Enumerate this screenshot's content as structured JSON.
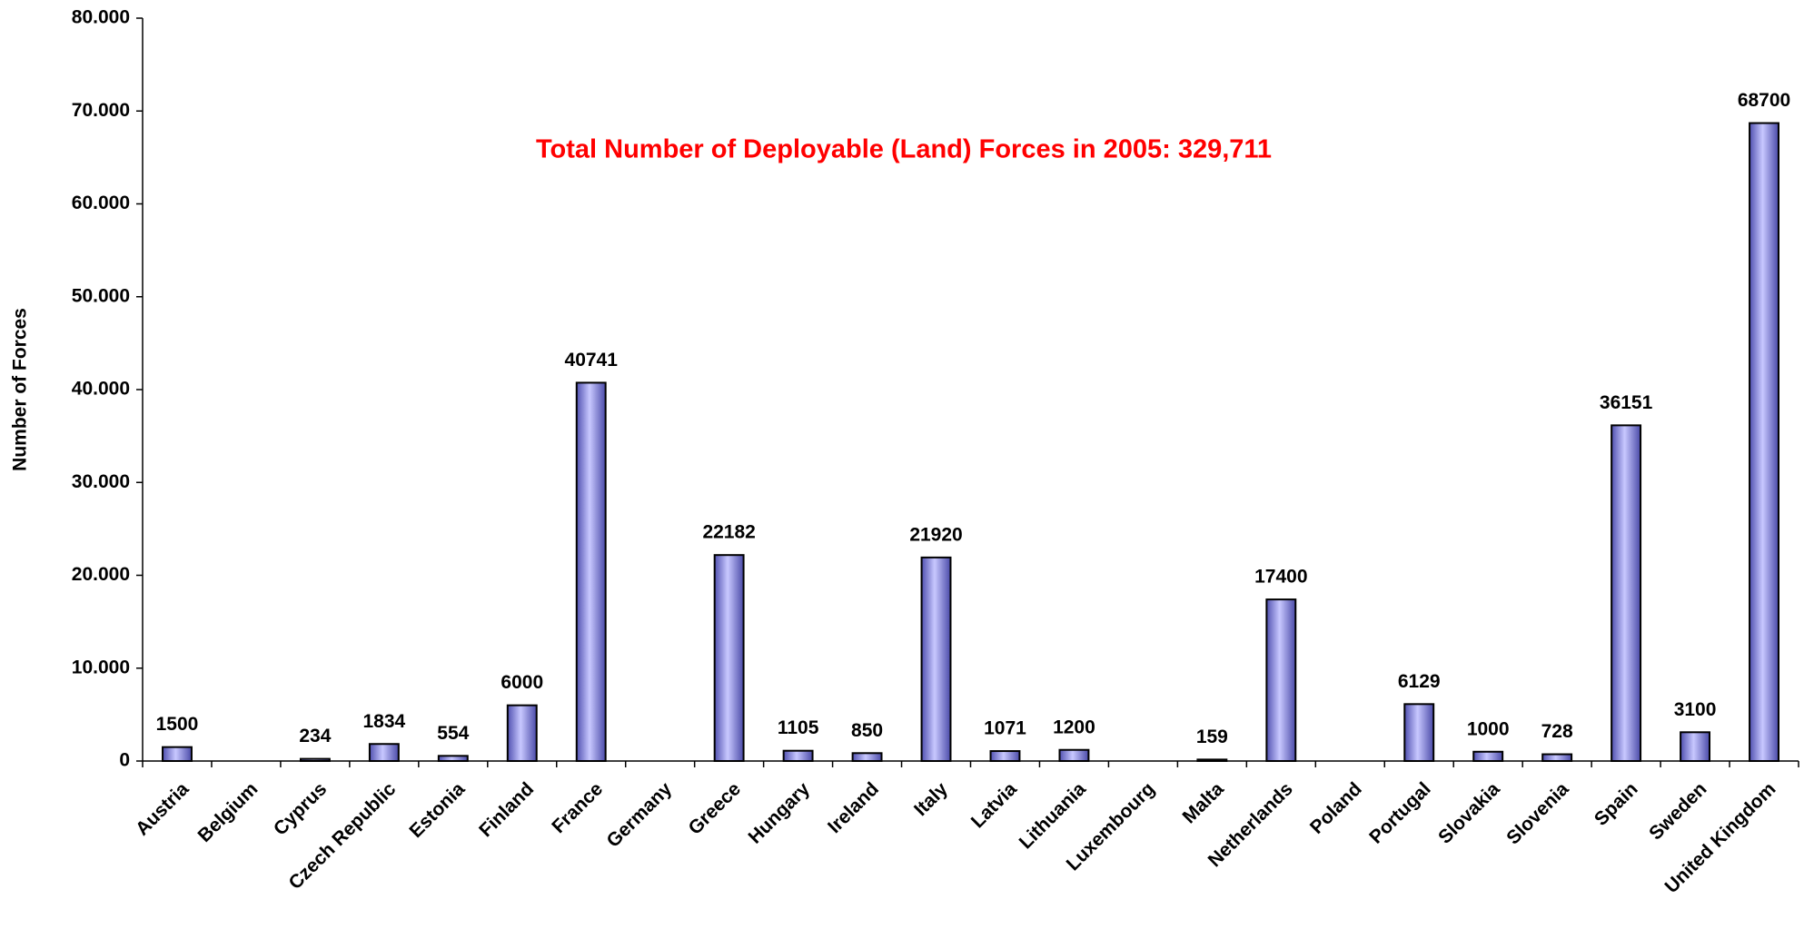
{
  "chart_data": {
    "type": "bar",
    "annotation": "Total Number of Deployable (Land) Forces in 2005:   329,711",
    "y_label": "Number of Forces",
    "categories": [
      "Austria",
      "Belgium",
      "Cyprus",
      "Czech Republic",
      "Estonia",
      "Finland",
      "France",
      "Germany",
      "Greece",
      "Hungary",
      "Ireland",
      "Italy",
      "Latvia",
      "Lithuania",
      "Luxembourg",
      "Malta",
      "Netherlands",
      "Poland",
      "Portugal",
      "Slovakia",
      "Slovenia",
      "Spain",
      "Sweden",
      "United Kingdom"
    ],
    "values": [
      1500,
      null,
      234,
      1834,
      554,
      6000,
      40741,
      null,
      22182,
      1105,
      850,
      21920,
      1071,
      1200,
      null,
      159,
      17400,
      null,
      6129,
      1000,
      728,
      36151,
      3100,
      68700
    ],
    "color": "#8c8cf0",
    "ylim": [
      0,
      80000
    ],
    "yticks": [
      0,
      {
        "value": 10000,
        "label": "10.000"
      },
      {
        "value": 20000,
        "label": "20.000"
      },
      {
        "value": 30000,
        "label": "30.000"
      },
      {
        "value": 40000,
        "label": "40.000"
      },
      {
        "value": 50000,
        "label": "50.000"
      },
      {
        "value": 60000,
        "label": "60.000"
      },
      {
        "value": 70000,
        "label": "70.000"
      },
      {
        "value": 80000,
        "label": "80.000"
      }
    ],
    "grid": false
  }
}
